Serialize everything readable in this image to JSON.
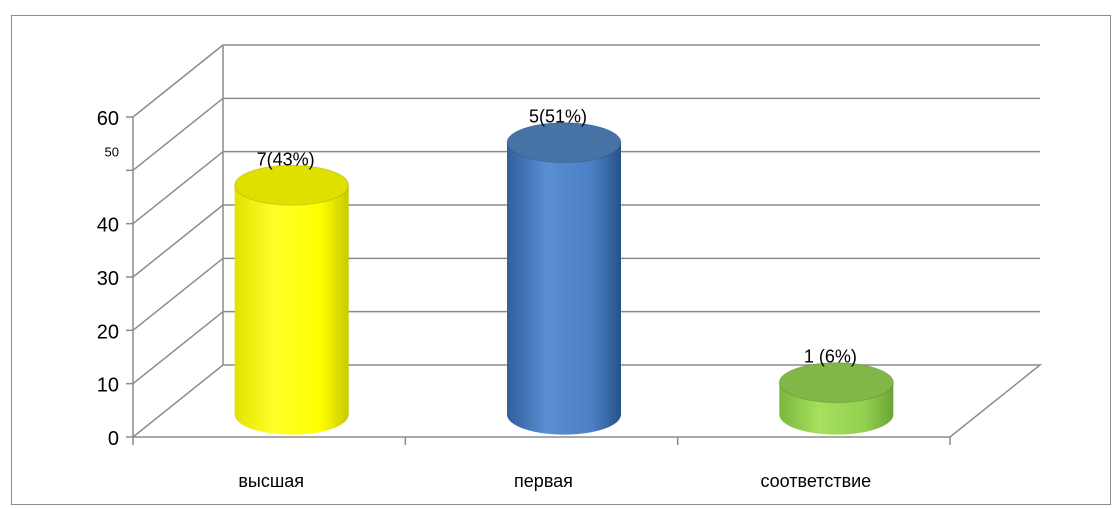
{
  "chart_data": {
    "type": "bar",
    "style": "3d-cylinder",
    "categories": [
      "высшая",
      "первая",
      "соответствие"
    ],
    "values": [
      43,
      51,
      6
    ],
    "data_labels": [
      "7(43%)",
      "5(51%)",
      "1 (6%)"
    ],
    "series_colors": [
      "#ffff00",
      "#4f81bd",
      "#92d050"
    ],
    "y_ticks": [
      "0",
      "10",
      "20",
      "30",
      "40",
      "50",
      "60"
    ],
    "ylim": [
      0,
      60
    ],
    "grid": true,
    "legend": "none"
  }
}
